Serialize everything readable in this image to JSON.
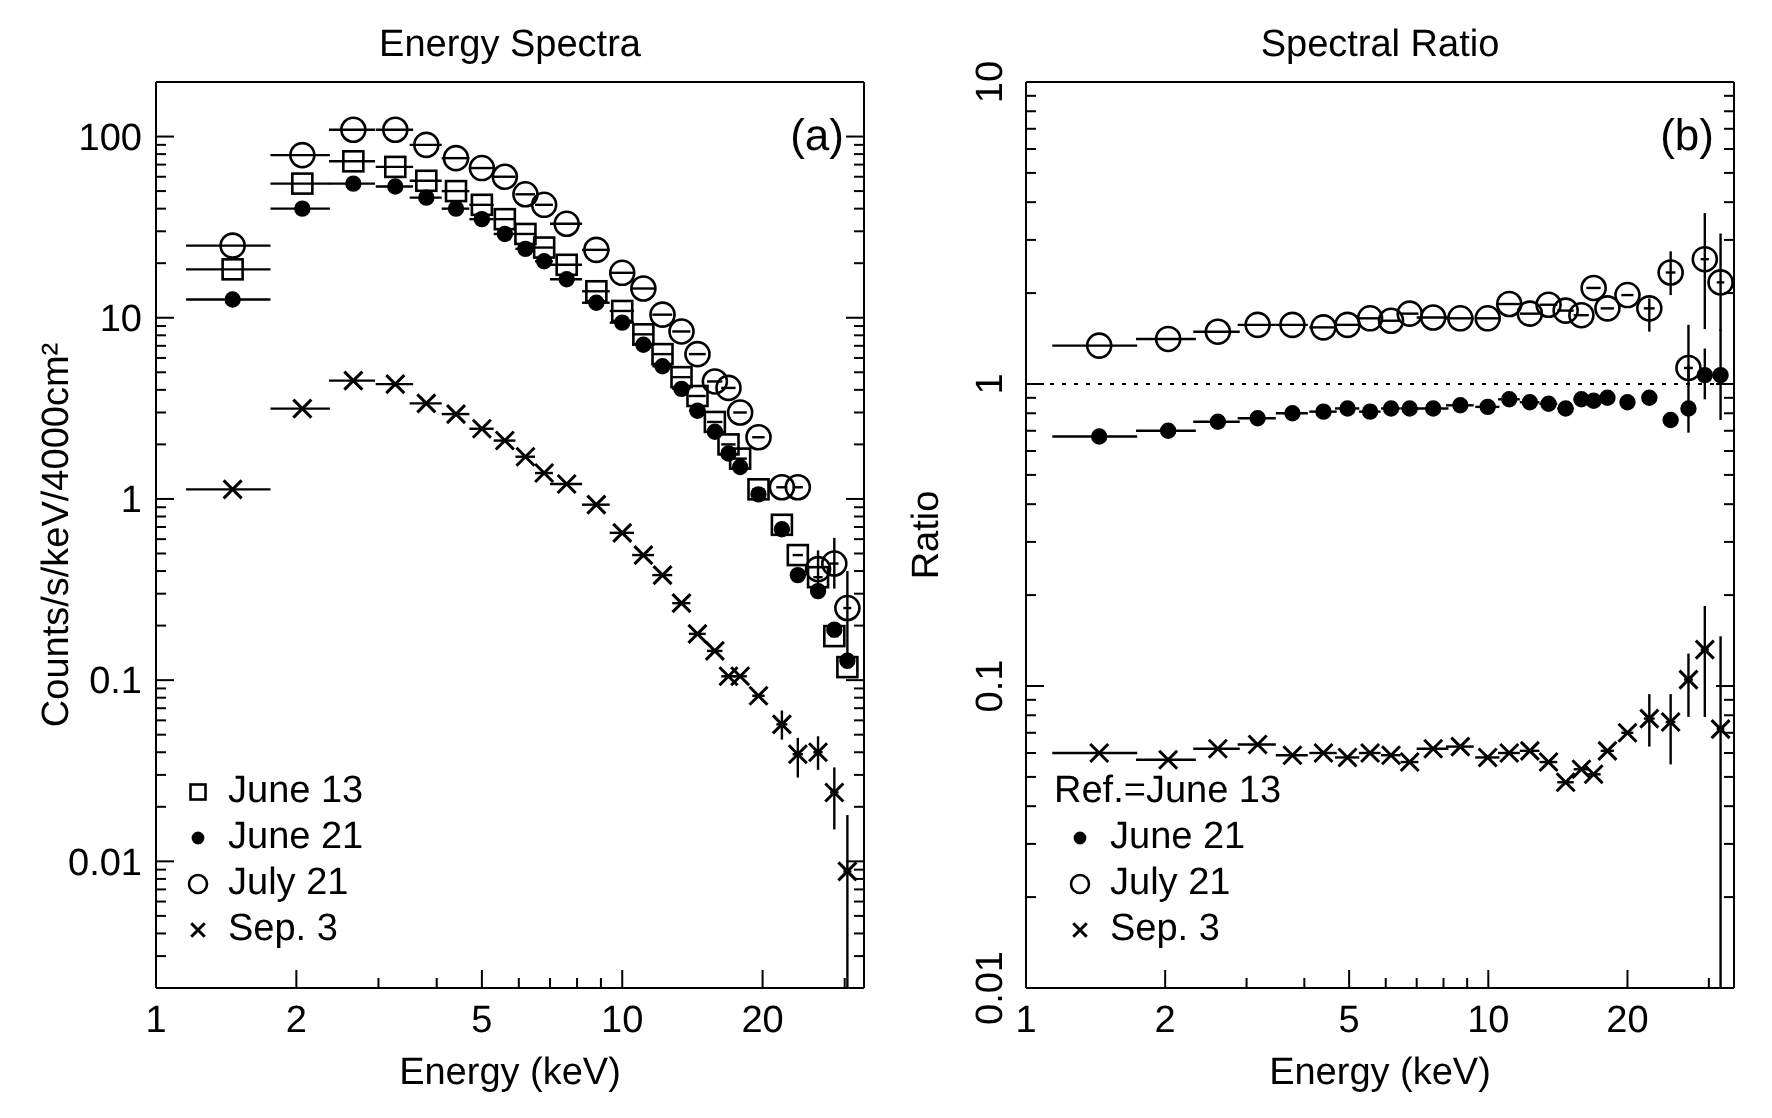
{
  "chart_data": [
    {
      "type": "scatter",
      "title": "Energy Spectra",
      "xlabel": "Energy (keV)",
      "ylabel": "Counts/s/keV/4000cm²",
      "log": "xy",
      "legend": "bottom left",
      "annotations": [
        "(a)"
      ],
      "xlim": [
        1,
        33
      ],
      "ylim": [
        0.002,
        200
      ],
      "xticks": [
        1,
        2,
        {
          "value": 3,
          "label": null
        },
        {
          "value": 4,
          "label": null
        },
        5,
        {
          "value": 6,
          "label": null
        },
        {
          "value": 7,
          "label": null
        },
        {
          "value": 8,
          "label": null
        },
        {
          "value": 9,
          "label": null
        },
        10,
        20,
        {
          "value": 30,
          "label": null
        }
      ],
      "yticks": [
        {
          "value": 0.002,
          "label": null
        },
        {
          "value": 0.003,
          "label": null
        },
        {
          "value": 0.004,
          "label": null
        },
        {
          "value": 0.005,
          "label": null
        },
        {
          "value": 0.006,
          "label": null
        },
        {
          "value": 0.007,
          "label": null
        },
        {
          "value": 0.008,
          "label": null
        },
        {
          "value": 0.009,
          "label": null
        },
        0.01,
        {
          "value": 0.02,
          "label": null
        },
        {
          "value": 0.03,
          "label": null
        },
        {
          "value": 0.04,
          "label": null
        },
        {
          "value": 0.05,
          "label": null
        },
        {
          "value": 0.06,
          "label": null
        },
        {
          "value": 0.07,
          "label": null
        },
        {
          "value": 0.08,
          "label": null
        },
        {
          "value": 0.09,
          "label": null
        },
        0.1,
        {
          "value": 0.2,
          "label": null
        },
        {
          "value": 0.3,
          "label": null
        },
        {
          "value": 0.4,
          "label": null
        },
        {
          "value": 0.5,
          "label": null
        },
        {
          "value": 0.6,
          "label": null
        },
        {
          "value": 0.7,
          "label": null
        },
        {
          "value": 0.8,
          "label": null
        },
        {
          "value": 0.9,
          "label": null
        },
        1,
        {
          "value": 2,
          "label": null
        },
        {
          "value": 3,
          "label": null
        },
        {
          "value": 4,
          "label": null
        },
        {
          "value": 5,
          "label": null
        },
        {
          "value": 6,
          "label": null
        },
        {
          "value": 7,
          "label": null
        },
        {
          "value": 8,
          "label": null
        },
        {
          "value": 9,
          "label": null
        },
        10,
        {
          "value": 20,
          "label": null
        },
        {
          "value": 30,
          "label": null
        },
        {
          "value": 40,
          "label": null
        },
        {
          "value": 50,
          "label": null
        },
        {
          "value": 60,
          "label": null
        },
        {
          "value": 70,
          "label": null
        },
        {
          "value": 80,
          "label": null
        },
        {
          "value": 90,
          "label": null
        },
        100,
        {
          "value": 200,
          "label": null
        }
      ],
      "x": [
        1.46,
        2.06,
        2.65,
        3.26,
        3.8,
        4.4,
        5.0,
        5.6,
        6.2,
        6.8,
        7.6,
        8.8,
        10,
        11.1,
        12.2,
        13.4,
        14.5,
        15.8,
        16.9,
        17.9,
        19.6,
        22,
        23.8,
        26.3,
        28.5,
        30.4
      ],
      "series": [
        {
          "name": "June 13",
          "color": "#000000",
          "marker": "square",
          "values": [
            18.5,
            55,
            73,
            68,
            57,
            50,
            42,
            35,
            29,
            24.4,
            19.6,
            14,
            10.9,
            8.1,
            6.3,
            4.7,
            3.7,
            2.66,
            2.0,
            1.67,
            1.13,
            0.72,
            0.49,
            0.37,
            0.175,
            0.118
          ],
          "xerrors": [
            0.3,
            0.3,
            0.3,
            0.3,
            0.3,
            0.3,
            0.3,
            0.3,
            0.3,
            0.3,
            0.6,
            0.6,
            0.6,
            0.6,
            0.6,
            0.6,
            0.6,
            0.6,
            0.6,
            0.6,
            0.6,
            0.6,
            0.6,
            0.6,
            0.6,
            0.6
          ]
        },
        {
          "name": "June 21",
          "color": "#000000",
          "marker": "circle",
          "values": [
            12.6,
            40,
            55,
            53,
            46,
            40,
            35,
            29,
            24,
            20.5,
            16.3,
            12.1,
            9.4,
            7.1,
            5.4,
            4.05,
            3.07,
            2.35,
            1.78,
            1.5,
            1.06,
            0.68,
            0.38,
            0.31,
            0.19,
            0.128
          ],
          "xerrors": [
            0.3,
            0.3,
            0.3,
            0.3,
            0.3,
            0.3,
            0.3,
            0.3,
            0.3,
            0.3,
            0.6,
            0.6,
            0.6,
            0.6,
            0.6,
            0.6,
            0.6,
            0.6,
            0.6,
            0.6,
            0.6,
            0.6,
            0.6,
            0.6,
            0.6,
            0.6
          ]
        },
        {
          "name": "July 21",
          "color": "#000000",
          "marker": "circle-open",
          "values": [
            25,
            79,
            109,
            109,
            90,
            76,
            67,
            60,
            48,
            42,
            33,
            23.7,
            17.7,
            14.5,
            10.4,
            8.4,
            6.3,
            4.45,
            4.1,
            3.0,
            2.19,
            1.16,
            1.16,
            0.41,
            0.44,
            0.25
          ],
          "xerrors": [
            0.3,
            0.3,
            0.3,
            0.3,
            0.3,
            0.3,
            0.3,
            0.3,
            0.3,
            0.3,
            0.6,
            0.6,
            0.6,
            0.6,
            0.6,
            0.6,
            0.6,
            0.6,
            0.6,
            0.6,
            0.6,
            0.6,
            0.6,
            null,
            0.6,
            0.6
          ],
          "errors": [
            null,
            null,
            null,
            null,
            null,
            null,
            null,
            null,
            null,
            null,
            null,
            null,
            null,
            null,
            null,
            null,
            null,
            null,
            null,
            null,
            null,
            null,
            null,
            [
              0.28,
              0.52
            ],
            [
              0.32,
              0.61
            ],
            [
              0.118,
              0.4
            ]
          ]
        },
        {
          "name": "Sep. 3",
          "color": "#000000",
          "marker": "cross",
          "values": [
            1.13,
            3.15,
            4.5,
            4.3,
            3.37,
            2.94,
            2.44,
            2.1,
            1.71,
            1.39,
            1.21,
            0.93,
            0.65,
            0.49,
            0.38,
            0.266,
            0.18,
            0.145,
            0.105,
            0.105,
            0.082,
            0.057,
            0.039,
            0.04,
            0.024,
            0.0088
          ],
          "xerrors": [
            0.3,
            0.3,
            0.3,
            0.3,
            0.3,
            0.3,
            0.3,
            0.3,
            0.3,
            0.3,
            0.6,
            0.6,
            0.6,
            0.6,
            0.6,
            0.6,
            0.6,
            0.6,
            0.6,
            0.6,
            0.6,
            0.6,
            0.6,
            0.6,
            0.6,
            0.6
          ],
          "errors": [
            null,
            null,
            null,
            null,
            null,
            null,
            null,
            null,
            null,
            null,
            null,
            null,
            null,
            null,
            null,
            null,
            null,
            null,
            null,
            null,
            null,
            [
              0.047,
              0.068
            ],
            [
              0.029,
              0.048
            ],
            [
              0.032,
              0.049
            ],
            [
              0.015,
              0.033
            ],
            [
              0.002,
              0.018
            ]
          ]
        }
      ]
    },
    {
      "type": "scatter",
      "title": "Spectral Ratio",
      "xlabel": "Energy (keV)",
      "ylabel": "Ratio",
      "log": "xy",
      "legend": "bottom left",
      "legend_title": "Ref.=June 13",
      "annotations": [
        "(b)"
      ],
      "xlim": [
        1,
        34
      ],
      "ylim": [
        0.01,
        10
      ],
      "xticks": [
        1,
        2,
        {
          "value": 3,
          "label": null
        },
        {
          "value": 4,
          "label": null
        },
        5,
        {
          "value": 6,
          "label": null
        },
        {
          "value": 7,
          "label": null
        },
        {
          "value": 8,
          "label": null
        },
        {
          "value": 9,
          "label": null
        },
        10,
        20,
        {
          "value": 30,
          "label": null
        }
      ],
      "yticks": [
        0.01,
        {
          "value": 0.02,
          "label": null
        },
        {
          "value": 0.03,
          "label": null
        },
        {
          "value": 0.04,
          "label": null
        },
        {
          "value": 0.05,
          "label": null
        },
        {
          "value": 0.06,
          "label": null
        },
        {
          "value": 0.07,
          "label": null
        },
        {
          "value": 0.08,
          "label": null
        },
        {
          "value": 0.09,
          "label": null
        },
        0.1,
        {
          "value": 0.2,
          "label": null
        },
        {
          "value": 0.3,
          "label": null
        },
        {
          "value": 0.4,
          "label": null
        },
        {
          "value": 0.5,
          "label": null
        },
        {
          "value": 0.6,
          "label": null
        },
        {
          "value": 0.7,
          "label": null
        },
        {
          "value": 0.8,
          "label": null
        },
        {
          "value": 0.9,
          "label": null
        },
        1,
        {
          "value": 2,
          "label": null
        },
        {
          "value": 3,
          "label": null
        },
        {
          "value": 4,
          "label": null
        },
        {
          "value": 5,
          "label": null
        },
        {
          "value": 6,
          "label": null
        },
        {
          "value": 7,
          "label": null
        },
        {
          "value": 8,
          "label": null
        },
        {
          "value": 9,
          "label": null
        },
        10
      ],
      "ref_lines": [
        {
          "axis": "y",
          "value": 1,
          "line_style": "dotted",
          "color": "#000000"
        }
      ],
      "x": [
        1.44,
        2.03,
        2.6,
        3.17,
        3.77,
        4.4,
        4.96,
        5.55,
        6.16,
        6.76,
        7.6,
        8.7,
        9.97,
        11.1,
        12.3,
        13.5,
        14.7,
        15.9,
        16.9,
        18.1,
        20,
        22.3,
        24.8,
        27.1,
        29.4,
        31.8
      ],
      "series": [
        {
          "name": "June 21",
          "color": "#000000",
          "marker": "circle",
          "values": [
            0.67,
            0.7,
            0.75,
            0.77,
            0.8,
            0.81,
            0.83,
            0.81,
            0.83,
            0.83,
            0.83,
            0.85,
            0.84,
            0.89,
            0.87,
            0.86,
            0.83,
            0.89,
            0.88,
            0.9,
            0.87,
            0.9,
            0.76,
            0.83,
            1.07,
            1.07
          ],
          "xerrors": [
            0.3,
            0.3,
            0.3,
            0.3,
            0.3,
            0.3,
            0.3,
            0.3,
            0.3,
            0.3,
            0.6,
            0.6,
            0.6,
            0.6,
            0.6,
            0.6,
            0.6,
            0.6,
            0.6,
            0.6,
            0.6,
            0.6,
            0.6,
            0.6,
            0.6,
            0.6
          ],
          "errors": [
            null,
            null,
            null,
            null,
            null,
            null,
            null,
            null,
            null,
            null,
            null,
            null,
            null,
            null,
            null,
            null,
            null,
            null,
            null,
            null,
            null,
            null,
            null,
            [
              0.69,
              1.15
            ],
            [
              0.89,
              1.31
            ],
            [
              0.76,
              1.52
            ]
          ]
        },
        {
          "name": "July 21",
          "color": "#000000",
          "marker": "circle-open",
          "values": [
            1.34,
            1.41,
            1.49,
            1.57,
            1.57,
            1.54,
            1.57,
            1.65,
            1.62,
            1.71,
            1.66,
            1.65,
            1.65,
            1.84,
            1.71,
            1.83,
            1.75,
            1.69,
            2.08,
            1.78,
            1.97,
            1.78,
            2.34,
            1.13,
            2.59,
            2.17
          ],
          "xerrors": [
            0.3,
            0.3,
            0.3,
            0.3,
            0.3,
            0.3,
            0.3,
            0.3,
            0.3,
            0.3,
            0.6,
            0.6,
            0.6,
            0.6,
            0.6,
            0.6,
            0.6,
            0.6,
            0.6,
            0.6,
            0.6,
            0.6,
            0.6,
            0.6,
            0.6,
            0.6
          ],
          "errors": [
            null,
            null,
            null,
            null,
            null,
            null,
            null,
            null,
            null,
            null,
            null,
            null,
            null,
            null,
            null,
            null,
            null,
            null,
            null,
            null,
            null,
            [
              1.49,
              1.92
            ],
            [
              1.97,
              2.75
            ],
            [
              1.04,
              1.57
            ],
            [
              1.52,
              3.68
            ],
            [
              1.5,
              3.15
            ]
          ]
        },
        {
          "name": "Sep. 3",
          "color": "#000000",
          "marker": "cross",
          "values": [
            0.06,
            0.057,
            0.062,
            0.064,
            0.059,
            0.06,
            0.058,
            0.06,
            0.059,
            0.056,
            0.062,
            0.063,
            0.058,
            0.06,
            0.061,
            0.056,
            0.048,
            0.053,
            0.051,
            0.061,
            0.07,
            0.078,
            0.076,
            0.105,
            0.132,
            0.072
          ],
          "xerrors": [
            0.3,
            0.3,
            0.3,
            0.3,
            0.3,
            0.3,
            0.3,
            0.3,
            0.3,
            0.3,
            0.6,
            0.6,
            0.6,
            0.6,
            0.6,
            0.6,
            0.6,
            0.6,
            0.6,
            0.6,
            0.6,
            0.6,
            0.6,
            0.6,
            0.6,
            0.6
          ],
          "errors": [
            null,
            null,
            null,
            null,
            null,
            null,
            null,
            null,
            null,
            null,
            null,
            null,
            null,
            null,
            null,
            null,
            null,
            null,
            null,
            null,
            null,
            [
              0.063,
              0.094
            ],
            [
              0.055,
              0.094
            ],
            [
              0.079,
              0.128
            ],
            [
              0.079,
              0.184
            ],
            [
              0.01,
              0.146
            ]
          ]
        }
      ]
    }
  ]
}
